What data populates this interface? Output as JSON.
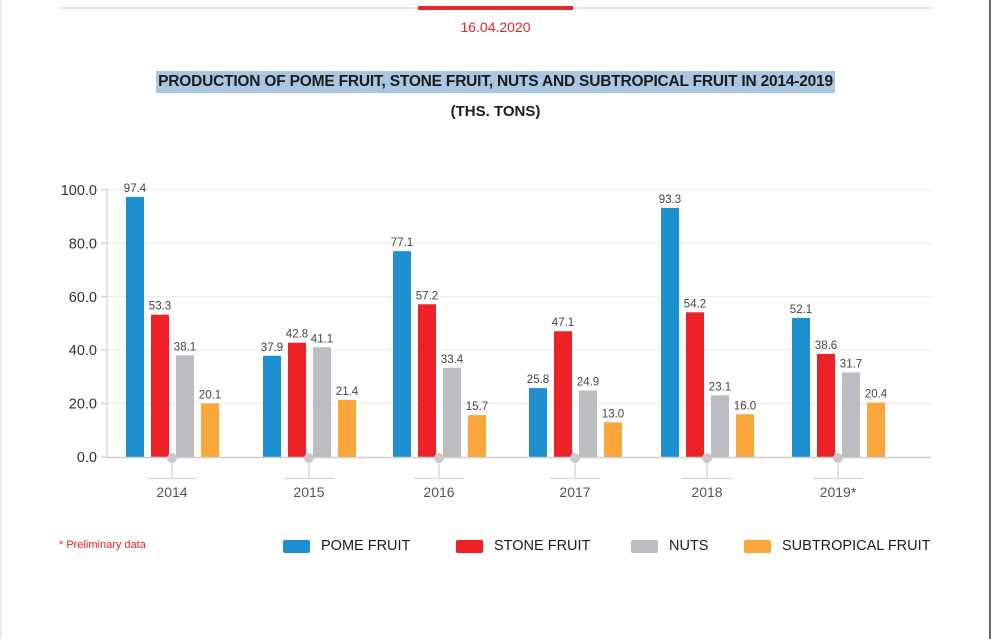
{
  "header": {
    "date": "16.04.2020"
  },
  "footnote": "* Preliminary data",
  "colors": {
    "accent": "#e3262b",
    "pome": "#1e90d0",
    "stone": "#ec2227",
    "nuts": "#bcbdc0",
    "subtropical": "#f9a63a",
    "title_highlight": "#a9c7e0"
  },
  "chart_data": {
    "type": "bar",
    "title": "PRODUCTION OF POME FRUIT, STONE FRUIT, NUTS AND SUBTROPICAL FRUIT IN 2014-2019",
    "subtitle": "(THS. TONS)",
    "xlabel": "",
    "ylabel": "",
    "ylim": [
      0,
      100
    ],
    "yticks": [
      "0.0",
      "20.0",
      "40.0",
      "60.0",
      "80.0",
      "100.0"
    ],
    "ytick_values": [
      0,
      20,
      40,
      60,
      80,
      100
    ],
    "grid": true,
    "legend_position": "bottom",
    "categories": [
      "2014",
      "2015",
      "2016",
      "2017",
      "2018",
      "2019*"
    ],
    "series": [
      {
        "name": "POME FRUIT",
        "color": "#1e90d0",
        "values": [
          97.4,
          37.9,
          77.1,
          25.8,
          93.3,
          52.1
        ],
        "labels": [
          "97.4",
          "37.9",
          "77.1",
          "25.8",
          "93.3",
          "52.1"
        ]
      },
      {
        "name": "STONE FRUIT",
        "color": "#ec2227",
        "values": [
          53.3,
          42.8,
          57.2,
          47.1,
          54.2,
          38.6
        ],
        "labels": [
          "53.3",
          "42.8",
          "57.2",
          "47.1",
          "54.2",
          "38.6"
        ]
      },
      {
        "name": "NUTS",
        "color": "#bcbdc0",
        "values": [
          38.1,
          41.1,
          33.4,
          24.9,
          23.1,
          31.7
        ],
        "labels": [
          "38.1",
          "41.1",
          "33.4",
          "24.9",
          "23.1",
          "31.7"
        ]
      },
      {
        "name": "SUBTROPICAL FRUIT",
        "color": "#f9a63a",
        "values": [
          20.1,
          21.4,
          15.7,
          13.0,
          16.0,
          20.4
        ],
        "labels": [
          "20.1",
          "21.4",
          "15.7",
          "13.0",
          "16.0",
          "20.4"
        ]
      }
    ]
  }
}
